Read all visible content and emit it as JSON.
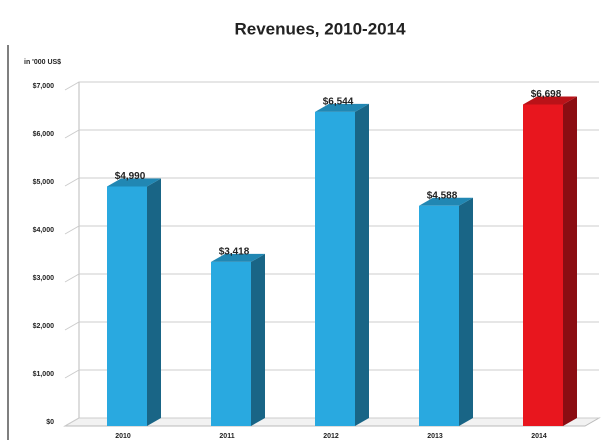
{
  "chart_data": {
    "type": "bar3d",
    "title": "Revenues, 2010-2014",
    "unit_label": "in '000 US$",
    "categories": [
      "2010",
      "2011",
      "2012",
      "2013",
      "2014"
    ],
    "values": [
      4990,
      3418,
      6544,
      4588,
      6698
    ],
    "value_labels": [
      "$4,990",
      "$3,418",
      "$6,544",
      "$4,588",
      "$6,698"
    ],
    "colors": [
      "#29a9e0",
      "#29a9e0",
      "#29a9e0",
      "#29a9e0",
      "#e8161e"
    ],
    "ylim": [
      0,
      7000
    ],
    "yticks": [
      {
        "value": 0,
        "label": "$0"
      },
      {
        "value": 1000,
        "label": "$1,000"
      },
      {
        "value": 2000,
        "label": "$2,000"
      },
      {
        "value": 3000,
        "label": "$3,000"
      },
      {
        "value": 4000,
        "label": "$4,000"
      },
      {
        "value": 5000,
        "label": "$5,000"
      },
      {
        "value": 6000,
        "label": "$6,000"
      },
      {
        "value": 7000,
        "label": "$7,000"
      }
    ],
    "grid": true
  }
}
